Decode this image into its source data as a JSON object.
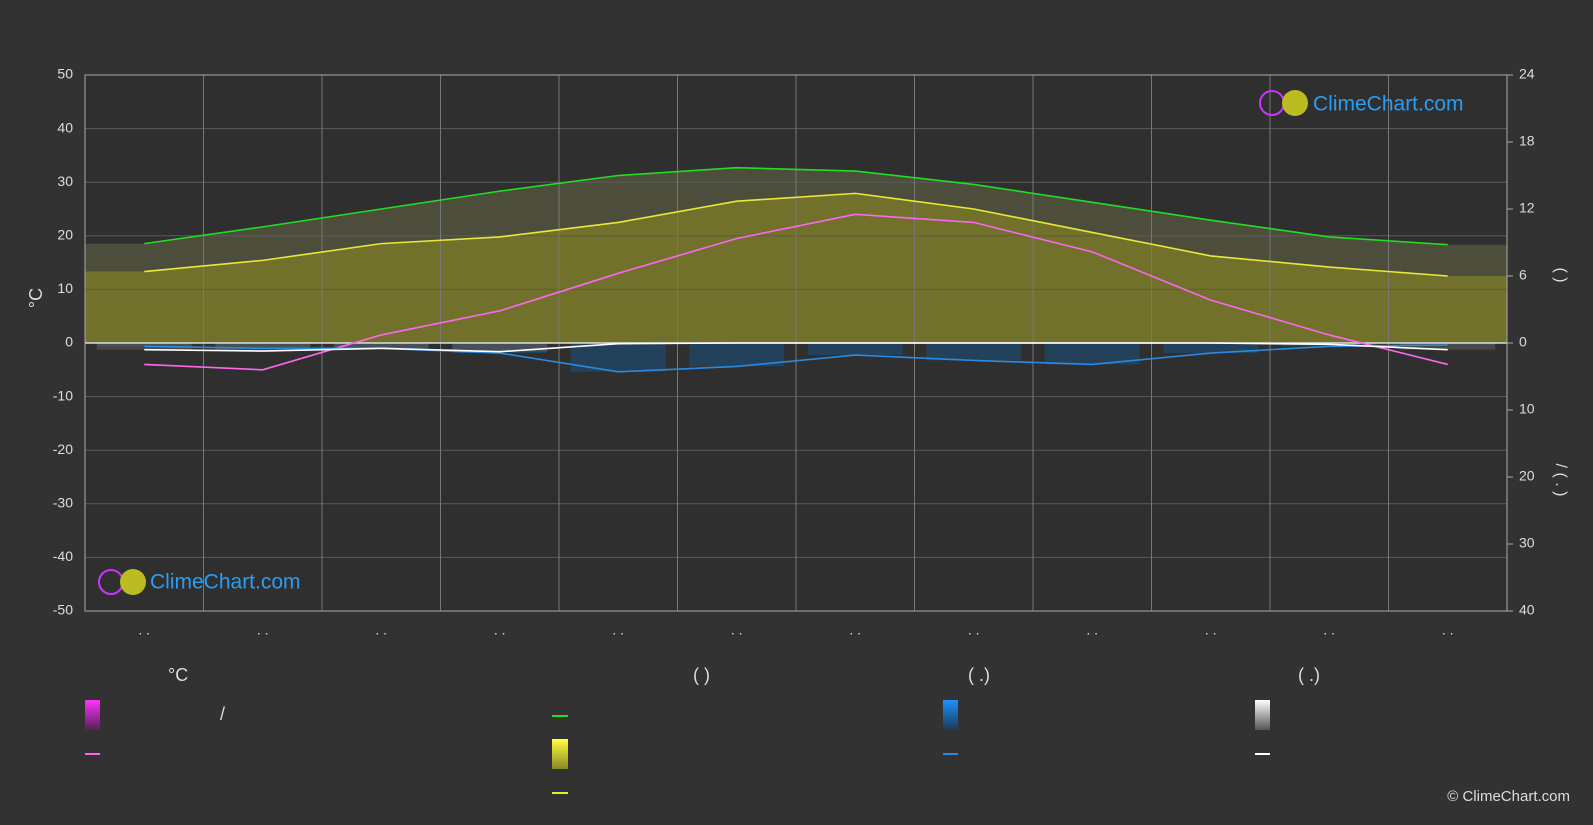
{
  "chart_data": {
    "type": "line",
    "y_label": "°C",
    "y2_label_top": "(  )",
    "y2_label_bottom": "/ ( . )",
    "categories": [
      ". .",
      ". .",
      ". .",
      ". .",
      ". .",
      ". .",
      ". .",
      ". .",
      ". .",
      ". .",
      ". .",
      ". ."
    ],
    "ylim": [
      -50,
      50
    ],
    "yticks": [
      -50,
      -40,
      -30,
      -20,
      -10,
      0,
      10,
      20,
      30,
      40,
      50
    ],
    "y2lim": [
      0,
      24
    ],
    "y2ticks": [
      0,
      6,
      12,
      18,
      24
    ],
    "y3lim": [
      0,
      40
    ],
    "y3ticks": [
      10,
      20,
      30,
      40
    ],
    "grid": true,
    "series": [
      {
        "name": "",
        "color": "#22dd22",
        "axis": "y2",
        "values": [
          8.9,
          10.4,
          12.0,
          13.6,
          15.0,
          15.7,
          15.4,
          14.2,
          12.6,
          11.0,
          9.5,
          8.8
        ]
      },
      {
        "name": "",
        "color": "#e8e83a",
        "axis": "y2",
        "values": [
          6.4,
          7.4,
          8.9,
          9.5,
          10.8,
          12.7,
          13.4,
          12.0,
          9.9,
          7.8,
          6.8,
          6.0
        ]
      },
      {
        "name": "",
        "color": "#ff66ee",
        "values": [
          -4,
          -5,
          1.5,
          6,
          13,
          19.5,
          24,
          22.5,
          17,
          8,
          1.5,
          -4
        ]
      },
      {
        "name": "",
        "color": "#2a8ae0",
        "axis": "y3",
        "values": [
          0.5,
          0.8,
          0.8,
          1.5,
          4.3,
          3.5,
          1.8,
          2.6,
          3.2,
          1.5,
          0.5,
          0.3
        ]
      },
      {
        "name": "",
        "color": "#ffffff",
        "axis": "y3",
        "values": [
          1.0,
          1.2,
          0.8,
          1.3,
          0.1,
          0,
          0,
          0,
          0,
          0,
          0.2,
          1.0
        ]
      }
    ],
    "logo": "ClimeChart.com",
    "copyright": "© ClimeChart.com",
    "legend_headers": [
      "°C",
      "(           )",
      "(   .)",
      "(   .)"
    ],
    "legend_slash": "/"
  }
}
